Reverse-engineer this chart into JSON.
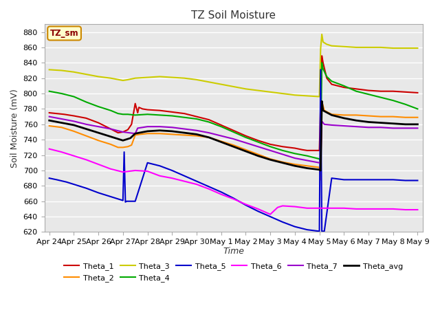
{
  "title": "TZ Soil Moisture",
  "xlabel": "Time",
  "ylabel": "Soil Moisture (mV)",
  "ylim": [
    620,
    890
  ],
  "background_color": "#ffffff",
  "plot_bg_color": "#e8e8e8",
  "legend_label": "TZ_sm",
  "tick_labels": [
    "Apr 24",
    "Apr 25",
    "Apr 26",
    "Apr 27",
    "Apr 28",
    "Apr 29",
    "Apr 30",
    "May 1",
    "May 2",
    "May 3",
    "May 4",
    "May 5",
    "May 6",
    "May 7",
    "May 8",
    "May 9"
  ],
  "series": {
    "Theta_1": {
      "color": "#cc0000",
      "points": [
        [
          0,
          775
        ],
        [
          0.3,
          774
        ],
        [
          0.6,
          773
        ],
        [
          1.0,
          771
        ],
        [
          1.5,
          768
        ],
        [
          2.0,
          762
        ],
        [
          2.5,
          754
        ],
        [
          2.8,
          749
        ],
        [
          3.0,
          750
        ],
        [
          3.2,
          753
        ],
        [
          3.35,
          760
        ],
        [
          3.5,
          787
        ],
        [
          3.6,
          775
        ],
        [
          3.65,
          782
        ],
        [
          3.8,
          780
        ],
        [
          4.0,
          779
        ],
        [
          4.5,
          778
        ],
        [
          5.0,
          776
        ],
        [
          5.5,
          774
        ],
        [
          6.0,
          770
        ],
        [
          6.5,
          766
        ],
        [
          7.0,
          759
        ],
        [
          7.5,
          752
        ],
        [
          8.0,
          745
        ],
        [
          8.5,
          739
        ],
        [
          9.0,
          734
        ],
        [
          9.5,
          731
        ],
        [
          10.0,
          729
        ],
        [
          10.3,
          727
        ],
        [
          10.5,
          726
        ],
        [
          10.8,
          726
        ],
        [
          11.0,
          726
        ],
        [
          11.1,
          849
        ],
        [
          11.15,
          840
        ],
        [
          11.3,
          820
        ],
        [
          11.5,
          812
        ],
        [
          12.0,
          808
        ],
        [
          12.5,
          806
        ],
        [
          13.0,
          804
        ],
        [
          13.5,
          803
        ],
        [
          14.0,
          803
        ],
        [
          14.5,
          802
        ],
        [
          15.0,
          801
        ]
      ]
    },
    "Theta_2": {
      "color": "#ff8c00",
      "points": [
        [
          0,
          758
        ],
        [
          0.5,
          756
        ],
        [
          1.0,
          751
        ],
        [
          1.5,
          745
        ],
        [
          2.0,
          739
        ],
        [
          2.5,
          734
        ],
        [
          2.8,
          730
        ],
        [
          3.0,
          730
        ],
        [
          3.2,
          731
        ],
        [
          3.35,
          733
        ],
        [
          3.5,
          746
        ],
        [
          3.7,
          747
        ],
        [
          4.0,
          748
        ],
        [
          4.5,
          748
        ],
        [
          5.0,
          747
        ],
        [
          5.5,
          746
        ],
        [
          6.0,
          745
        ],
        [
          6.5,
          743
        ],
        [
          7.0,
          738
        ],
        [
          7.5,
          733
        ],
        [
          8.0,
          727
        ],
        [
          8.5,
          721
        ],
        [
          9.0,
          715
        ],
        [
          9.5,
          711
        ],
        [
          10.0,
          708
        ],
        [
          10.5,
          706
        ],
        [
          11.0,
          704
        ],
        [
          11.05,
          688
        ],
        [
          11.1,
          790
        ],
        [
          11.2,
          778
        ],
        [
          11.5,
          773
        ],
        [
          12.0,
          772
        ],
        [
          12.5,
          772
        ],
        [
          13.0,
          771
        ],
        [
          13.5,
          770
        ],
        [
          14.0,
          770
        ],
        [
          14.5,
          769
        ],
        [
          15.0,
          769
        ]
      ]
    },
    "Theta_3": {
      "color": "#cccc00",
      "points": [
        [
          0,
          831
        ],
        [
          0.5,
          830
        ],
        [
          1.0,
          828
        ],
        [
          1.5,
          825
        ],
        [
          2.0,
          822
        ],
        [
          2.5,
          820
        ],
        [
          3.0,
          817
        ],
        [
          3.2,
          818
        ],
        [
          3.5,
          820
        ],
        [
          4.0,
          821
        ],
        [
          4.5,
          822
        ],
        [
          5.0,
          821
        ],
        [
          5.5,
          820
        ],
        [
          6.0,
          818
        ],
        [
          6.5,
          815
        ],
        [
          7.0,
          812
        ],
        [
          7.5,
          809
        ],
        [
          8.0,
          806
        ],
        [
          8.5,
          804
        ],
        [
          9.0,
          802
        ],
        [
          9.5,
          800
        ],
        [
          10.0,
          798
        ],
        [
          10.5,
          797
        ],
        [
          11.0,
          796
        ],
        [
          11.05,
          858
        ],
        [
          11.1,
          877
        ],
        [
          11.15,
          867
        ],
        [
          11.3,
          864
        ],
        [
          11.5,
          862
        ],
        [
          12.0,
          861
        ],
        [
          12.5,
          860
        ],
        [
          13.0,
          860
        ],
        [
          13.5,
          860
        ],
        [
          14.0,
          859
        ],
        [
          14.5,
          859
        ],
        [
          15.0,
          859
        ]
      ]
    },
    "Theta_4": {
      "color": "#00aa00",
      "points": [
        [
          0,
          803
        ],
        [
          0.5,
          800
        ],
        [
          1.0,
          796
        ],
        [
          1.5,
          789
        ],
        [
          2.0,
          783
        ],
        [
          2.5,
          778
        ],
        [
          2.8,
          774
        ],
        [
          3.0,
          773
        ],
        [
          3.2,
          773
        ],
        [
          3.5,
          772
        ],
        [
          4.0,
          773
        ],
        [
          4.5,
          772
        ],
        [
          5.0,
          771
        ],
        [
          5.5,
          769
        ],
        [
          6.0,
          767
        ],
        [
          6.5,
          763
        ],
        [
          7.0,
          757
        ],
        [
          7.5,
          750
        ],
        [
          8.0,
          743
        ],
        [
          8.5,
          737
        ],
        [
          9.0,
          731
        ],
        [
          9.5,
          726
        ],
        [
          10.0,
          722
        ],
        [
          10.5,
          719
        ],
        [
          11.0,
          715
        ],
        [
          11.05,
          712
        ],
        [
          11.1,
          840
        ],
        [
          11.15,
          832
        ],
        [
          11.3,
          822
        ],
        [
          11.5,
          816
        ],
        [
          12.0,
          810
        ],
        [
          12.5,
          803
        ],
        [
          13.0,
          799
        ],
        [
          13.5,
          795
        ],
        [
          14.0,
          791
        ],
        [
          14.5,
          786
        ],
        [
          15.0,
          780
        ]
      ]
    },
    "Theta_5": {
      "color": "#0000cc",
      "points": [
        [
          0,
          690
        ],
        [
          0.3,
          688
        ],
        [
          0.7,
          685
        ],
        [
          1.0,
          682
        ],
        [
          1.5,
          677
        ],
        [
          2.0,
          671
        ],
        [
          2.5,
          666
        ],
        [
          3.0,
          661
        ],
        [
          3.05,
          724
        ],
        [
          3.1,
          659
        ],
        [
          3.15,
          660
        ],
        [
          3.5,
          660
        ],
        [
          4.0,
          710
        ],
        [
          4.5,
          706
        ],
        [
          5.0,
          700
        ],
        [
          5.5,
          693
        ],
        [
          6.0,
          686
        ],
        [
          6.5,
          679
        ],
        [
          7.0,
          672
        ],
        [
          7.5,
          664
        ],
        [
          8.0,
          655
        ],
        [
          8.5,
          647
        ],
        [
          9.0,
          640
        ],
        [
          9.5,
          633
        ],
        [
          10.0,
          627
        ],
        [
          10.5,
          623
        ],
        [
          11.0,
          621
        ],
        [
          11.05,
          831
        ],
        [
          11.1,
          621
        ],
        [
          11.15,
          621
        ],
        [
          11.2,
          621
        ],
        [
          11.5,
          690
        ],
        [
          12.0,
          688
        ],
        [
          12.5,
          688
        ],
        [
          13.0,
          688
        ],
        [
          13.5,
          688
        ],
        [
          14.0,
          688
        ],
        [
          14.5,
          687
        ],
        [
          15.0,
          687
        ]
      ]
    },
    "Theta_6": {
      "color": "#ff00ff",
      "points": [
        [
          0,
          728
        ],
        [
          0.5,
          724
        ],
        [
          1.0,
          719
        ],
        [
          1.5,
          714
        ],
        [
          2.0,
          708
        ],
        [
          2.5,
          702
        ],
        [
          3.0,
          698
        ],
        [
          3.5,
          700
        ],
        [
          4.0,
          699
        ],
        [
          4.5,
          693
        ],
        [
          5.0,
          690
        ],
        [
          5.5,
          686
        ],
        [
          6.0,
          682
        ],
        [
          6.5,
          676
        ],
        [
          7.0,
          669
        ],
        [
          7.5,
          663
        ],
        [
          8.0,
          656
        ],
        [
          8.5,
          650
        ],
        [
          9.0,
          643
        ],
        [
          9.3,
          652
        ],
        [
          9.5,
          654
        ],
        [
          10.0,
          653
        ],
        [
          10.5,
          651
        ],
        [
          11.0,
          651
        ],
        [
          11.1,
          651
        ],
        [
          11.15,
          651
        ],
        [
          12.0,
          651
        ],
        [
          12.5,
          650
        ],
        [
          13.0,
          650
        ],
        [
          13.5,
          650
        ],
        [
          14.0,
          650
        ],
        [
          14.5,
          649
        ],
        [
          15.0,
          649
        ]
      ]
    },
    "Theta_7": {
      "color": "#9900cc",
      "points": [
        [
          0,
          770
        ],
        [
          0.5,
          767
        ],
        [
          1.0,
          764
        ],
        [
          1.5,
          760
        ],
        [
          2.0,
          757
        ],
        [
          2.5,
          754
        ],
        [
          3.0,
          750
        ],
        [
          3.5,
          748
        ],
        [
          3.6,
          755
        ],
        [
          4.0,
          757
        ],
        [
          4.5,
          757
        ],
        [
          5.0,
          756
        ],
        [
          5.5,
          754
        ],
        [
          6.0,
          752
        ],
        [
          6.5,
          749
        ],
        [
          7.0,
          745
        ],
        [
          7.5,
          741
        ],
        [
          8.0,
          736
        ],
        [
          8.5,
          731
        ],
        [
          9.0,
          726
        ],
        [
          9.5,
          721
        ],
        [
          10.0,
          716
        ],
        [
          10.5,
          713
        ],
        [
          11.0,
          710
        ],
        [
          11.05,
          709
        ],
        [
          11.1,
          764
        ],
        [
          11.2,
          760
        ],
        [
          11.5,
          759
        ],
        [
          12.0,
          758
        ],
        [
          12.5,
          757
        ],
        [
          13.0,
          756
        ],
        [
          13.5,
          756
        ],
        [
          14.0,
          755
        ],
        [
          14.5,
          755
        ],
        [
          15.0,
          755
        ]
      ]
    },
    "Theta_avg": {
      "color": "#000000",
      "points": [
        [
          0,
          765
        ],
        [
          0.5,
          762
        ],
        [
          1.0,
          759
        ],
        [
          1.5,
          754
        ],
        [
          2.0,
          749
        ],
        [
          2.5,
          744
        ],
        [
          3.0,
          739
        ],
        [
          3.3,
          742
        ],
        [
          3.5,
          748
        ],
        [
          4.0,
          751
        ],
        [
          4.5,
          752
        ],
        [
          5.0,
          751
        ],
        [
          5.5,
          749
        ],
        [
          6.0,
          747
        ],
        [
          6.5,
          743
        ],
        [
          7.0,
          737
        ],
        [
          7.5,
          731
        ],
        [
          8.0,
          725
        ],
        [
          8.5,
          719
        ],
        [
          9.0,
          714
        ],
        [
          9.5,
          710
        ],
        [
          10.0,
          706
        ],
        [
          10.5,
          703
        ],
        [
          11.0,
          701
        ],
        [
          11.05,
          700
        ],
        [
          11.1,
          790
        ],
        [
          11.15,
          778
        ],
        [
          11.5,
          772
        ],
        [
          12.0,
          768
        ],
        [
          12.5,
          765
        ],
        [
          13.0,
          763
        ],
        [
          13.5,
          762
        ],
        [
          14.0,
          761
        ],
        [
          14.5,
          760
        ],
        [
          15.0,
          760
        ]
      ]
    }
  },
  "legend_colors": {
    "Theta_1": "#cc0000",
    "Theta_2": "#ff8c00",
    "Theta_3": "#cccc00",
    "Theta_4": "#00aa00",
    "Theta_5": "#0000cc",
    "Theta_6": "#ff00ff",
    "Theta_7": "#9900cc",
    "Theta_avg": "#000000"
  }
}
